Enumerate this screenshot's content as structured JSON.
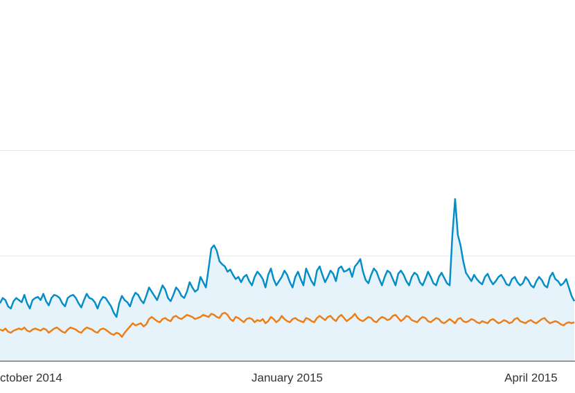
{
  "chart_data": {
    "type": "line",
    "categories": [
      null,
      null,
      null,
      null,
      null,
      null,
      null,
      null,
      null,
      null,
      null,
      null,
      null,
      null,
      "ctober 2014",
      null,
      null,
      null,
      null,
      null,
      null,
      null,
      null,
      null,
      null,
      null,
      null,
      null,
      null,
      null,
      null,
      null,
      null,
      null,
      null,
      null,
      null,
      null,
      null,
      null,
      null,
      null,
      null,
      null,
      null,
      null,
      null,
      null,
      null,
      null,
      null,
      null,
      null,
      null,
      null,
      null,
      null,
      null,
      null,
      null,
      null,
      null,
      null,
      null,
      null,
      null,
      null,
      null,
      null,
      null,
      null,
      null,
      null,
      null,
      null,
      null,
      null,
      null,
      null,
      null,
      null,
      null,
      null,
      null,
      null,
      null,
      null,
      null,
      null,
      null,
      null,
      null,
      null,
      null,
      null,
      null,
      null,
      null,
      null,
      null,
      null,
      null,
      null,
      null,
      null,
      null,
      "January 2015",
      null,
      null,
      null,
      null,
      null,
      null,
      null,
      null,
      null,
      null,
      null,
      null,
      null,
      null,
      null,
      null,
      null,
      null,
      null,
      null,
      null,
      null,
      null,
      null,
      null,
      null,
      null,
      null,
      null,
      null,
      null,
      null,
      null,
      null,
      null,
      null,
      null,
      null,
      null,
      null,
      null,
      null,
      null,
      null,
      null,
      null,
      null,
      null,
      null,
      null,
      null,
      null,
      null,
      null,
      null,
      null,
      null,
      null,
      null,
      null,
      null,
      null,
      null,
      null,
      null,
      null,
      null,
      null,
      null,
      null,
      null,
      null,
      null,
      null,
      null,
      null,
      null,
      null,
      null,
      null,
      null,
      null,
      null,
      null,
      null,
      null,
      null,
      null,
      null,
      "April 2015",
      null,
      null,
      null,
      null,
      null,
      null,
      null,
      null,
      null,
      null,
      null,
      null,
      null,
      null,
      null,
      null
    ],
    "series": [
      {
        "color": "#058dc7",
        "area": "#e6f3fa",
        "values": [
          0.55,
          0.6,
          0.58,
          0.52,
          0.5,
          0.57,
          0.6,
          0.58,
          0.56,
          0.63,
          0.55,
          0.5,
          0.58,
          0.6,
          0.61,
          0.58,
          0.64,
          0.57,
          0.53,
          0.6,
          0.63,
          0.62,
          0.6,
          0.55,
          0.52,
          0.6,
          0.62,
          0.63,
          0.6,
          0.55,
          0.51,
          0.58,
          0.64,
          0.6,
          0.59,
          0.56,
          0.5,
          0.57,
          0.61,
          0.6,
          0.56,
          0.52,
          0.46,
          0.42,
          0.55,
          0.62,
          0.58,
          0.56,
          0.52,
          0.6,
          0.65,
          0.63,
          0.58,
          0.55,
          0.62,
          0.7,
          0.66,
          0.62,
          0.58,
          0.65,
          0.72,
          0.68,
          0.6,
          0.57,
          0.63,
          0.7,
          0.67,
          0.62,
          0.6,
          0.66,
          0.75,
          0.7,
          0.66,
          0.68,
          0.8,
          0.75,
          0.7,
          0.88,
          1.07,
          1.1,
          1.05,
          0.95,
          0.92,
          0.9,
          0.85,
          0.87,
          0.82,
          0.78,
          0.8,
          0.75,
          0.8,
          0.82,
          0.76,
          0.72,
          0.8,
          0.85,
          0.82,
          0.78,
          0.7,
          0.82,
          0.88,
          0.78,
          0.72,
          0.76,
          0.8,
          0.86,
          0.82,
          0.75,
          0.7,
          0.8,
          0.85,
          0.78,
          0.72,
          0.88,
          0.82,
          0.76,
          0.72,
          0.86,
          0.9,
          0.82,
          0.75,
          0.8,
          0.86,
          0.83,
          0.76,
          0.88,
          0.9,
          0.85,
          0.86,
          0.88,
          0.8,
          0.9,
          0.93,
          0.97,
          0.85,
          0.77,
          0.74,
          0.82,
          0.88,
          0.85,
          0.78,
          0.72,
          0.8,
          0.86,
          0.84,
          0.78,
          0.72,
          0.83,
          0.86,
          0.82,
          0.76,
          0.72,
          0.8,
          0.84,
          0.82,
          0.75,
          0.72,
          0.78,
          0.85,
          0.8,
          0.74,
          0.72,
          0.8,
          0.84,
          0.79,
          0.74,
          0.72,
          1.2,
          1.54,
          1.2,
          1.1,
          0.95,
          0.84,
          0.8,
          0.76,
          0.82,
          0.78,
          0.75,
          0.73,
          0.8,
          0.83,
          0.77,
          0.73,
          0.76,
          0.8,
          0.82,
          0.78,
          0.73,
          0.72,
          0.78,
          0.8,
          0.75,
          0.72,
          0.74,
          0.8,
          0.77,
          0.72,
          0.7,
          0.76,
          0.8,
          0.77,
          0.72,
          0.7,
          0.8,
          0.84,
          0.78,
          0.76,
          0.72,
          0.74,
          0.78,
          0.7,
          0.62,
          0.57
        ]
      },
      {
        "color": "#ed7e17",
        "values": [
          0.3,
          0.29,
          0.31,
          0.28,
          0.27,
          0.29,
          0.3,
          0.31,
          0.3,
          0.32,
          0.29,
          0.28,
          0.3,
          0.31,
          0.3,
          0.29,
          0.31,
          0.3,
          0.27,
          0.29,
          0.31,
          0.32,
          0.3,
          0.28,
          0.27,
          0.3,
          0.32,
          0.31,
          0.3,
          0.28,
          0.27,
          0.3,
          0.32,
          0.31,
          0.3,
          0.28,
          0.27,
          0.3,
          0.31,
          0.3,
          0.28,
          0.26,
          0.25,
          0.27,
          0.26,
          0.23,
          0.27,
          0.3,
          0.33,
          0.36,
          0.34,
          0.35,
          0.36,
          0.33,
          0.35,
          0.4,
          0.42,
          0.4,
          0.38,
          0.37,
          0.4,
          0.41,
          0.39,
          0.38,
          0.42,
          0.43,
          0.41,
          0.4,
          0.42,
          0.44,
          0.43,
          0.42,
          0.4,
          0.41,
          0.42,
          0.44,
          0.43,
          0.42,
          0.45,
          0.44,
          0.42,
          0.41,
          0.45,
          0.46,
          0.44,
          0.4,
          0.38,
          0.42,
          0.41,
          0.39,
          0.37,
          0.4,
          0.41,
          0.4,
          0.37,
          0.39,
          0.38,
          0.4,
          0.36,
          0.38,
          0.42,
          0.4,
          0.37,
          0.39,
          0.43,
          0.4,
          0.38,
          0.37,
          0.4,
          0.41,
          0.39,
          0.38,
          0.37,
          0.41,
          0.4,
          0.38,
          0.37,
          0.41,
          0.43,
          0.41,
          0.39,
          0.42,
          0.43,
          0.4,
          0.38,
          0.42,
          0.44,
          0.41,
          0.38,
          0.4,
          0.42,
          0.45,
          0.41,
          0.39,
          0.38,
          0.4,
          0.42,
          0.41,
          0.38,
          0.37,
          0.4,
          0.42,
          0.41,
          0.39,
          0.4,
          0.43,
          0.44,
          0.41,
          0.38,
          0.4,
          0.43,
          0.42,
          0.39,
          0.38,
          0.37,
          0.4,
          0.42,
          0.41,
          0.38,
          0.37,
          0.39,
          0.41,
          0.4,
          0.37,
          0.36,
          0.38,
          0.4,
          0.38,
          0.36,
          0.4,
          0.41,
          0.38,
          0.37,
          0.38,
          0.4,
          0.39,
          0.37,
          0.36,
          0.38,
          0.37,
          0.36,
          0.39,
          0.4,
          0.38,
          0.36,
          0.37,
          0.39,
          0.38,
          0.36,
          0.37,
          0.4,
          0.41,
          0.38,
          0.37,
          0.36,
          0.38,
          0.39,
          0.37,
          0.36,
          0.38,
          0.4,
          0.41,
          0.38,
          0.36,
          0.37,
          0.38,
          0.37,
          0.35,
          0.34,
          0.36,
          0.37,
          0.36,
          0.37
        ]
      }
    ],
    "ylim": [
      0,
      3.43
    ],
    "yticks": [
      0,
      1,
      2
    ],
    "grid": true
  }
}
